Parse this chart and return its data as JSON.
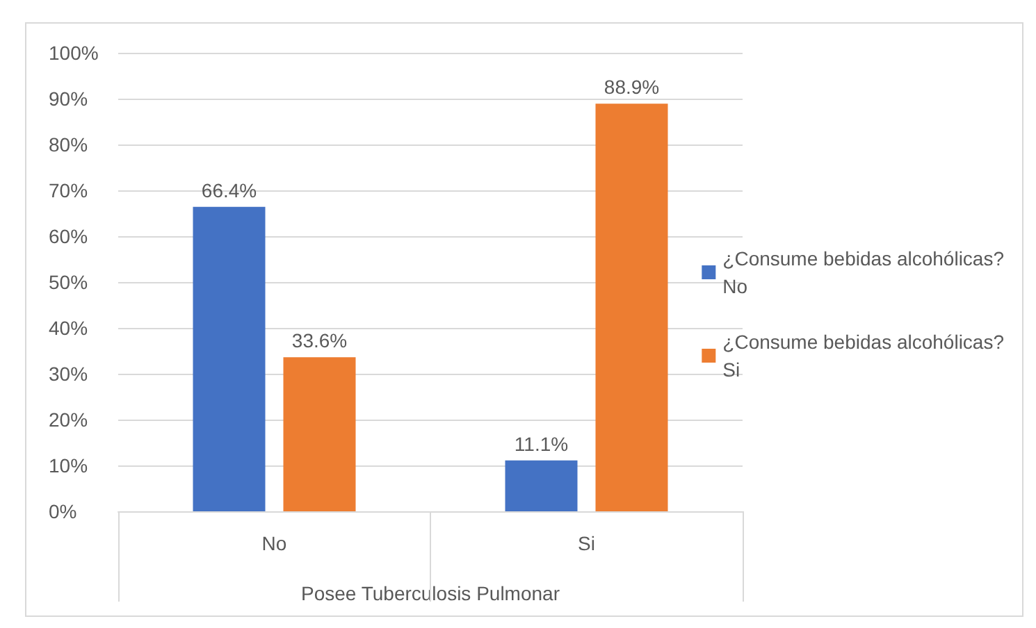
{
  "chart_data": {
    "type": "bar",
    "categories": [
      "No",
      "Si"
    ],
    "series": [
      {
        "name": "¿Consume bebidas alcohólicas? No",
        "color": "#4472c4",
        "values": [
          66.4,
          11.1
        ],
        "value_labels": [
          "66.4%",
          "11.1%"
        ]
      },
      {
        "name": "¿Consume bebidas alcohólicas? Si",
        "color": "#ed7d31",
        "values": [
          33.6,
          88.9
        ],
        "value_labels": [
          "33.6%",
          "88.9%"
        ]
      }
    ],
    "xlabel": "Posee Tuberculosis Pulmonar",
    "ylim": [
      0,
      100
    ],
    "yticks": [
      {
        "value": 0,
        "label": "0%"
      },
      {
        "value": 10,
        "label": "10%"
      },
      {
        "value": 20,
        "label": "20%"
      },
      {
        "value": 30,
        "label": "30%"
      },
      {
        "value": 40,
        "label": "40%"
      },
      {
        "value": 50,
        "label": "50%"
      },
      {
        "value": 60,
        "label": "60%"
      },
      {
        "value": 70,
        "label": "70%"
      },
      {
        "value": 80,
        "label": "80%"
      },
      {
        "value": 90,
        "label": "90%"
      },
      {
        "value": 100,
        "label": "100%"
      }
    ],
    "grid": "y",
    "legend": "right"
  }
}
